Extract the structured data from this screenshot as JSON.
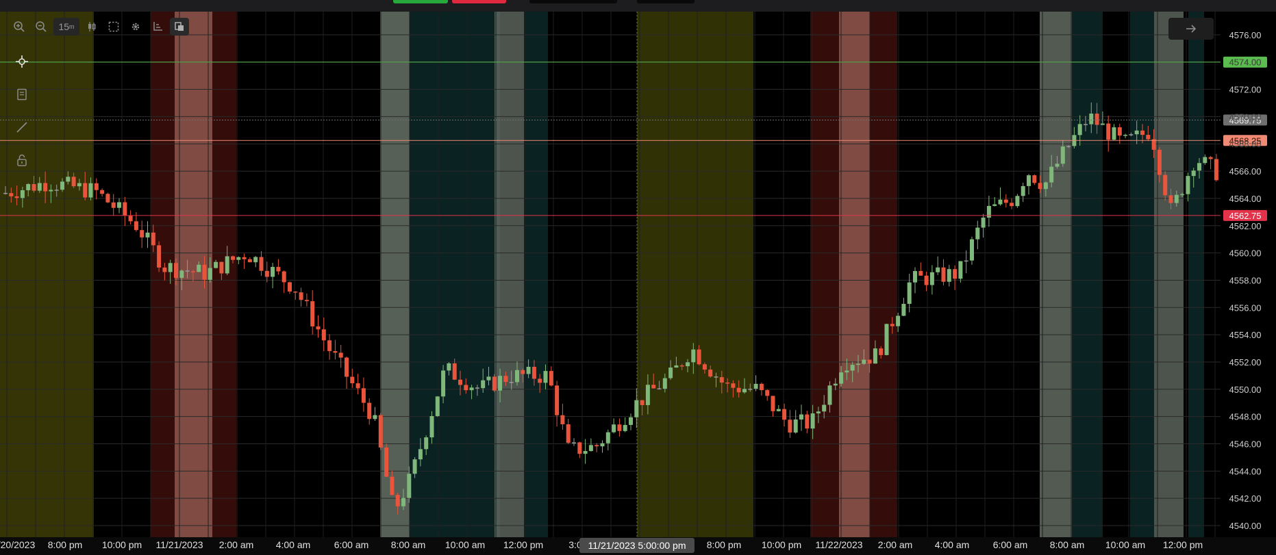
{
  "toolbar": {
    "interval_value": "15",
    "interval_unit": "m",
    "icons": [
      "zoom-in-icon",
      "zoom-out-icon",
      "candles-icon",
      "selection-icon",
      "gear-icon",
      "axis-icon",
      "layers-icon"
    ]
  },
  "side_tools": [
    "crosshair-icon",
    "notes-icon",
    "line-icon",
    "unlock-icon"
  ],
  "chart": {
    "y_ticks": [
      "4576.00",
      "4574.00",
      "4572.00",
      "4570.00",
      "4568.00",
      "4566.00",
      "4564.00",
      "4562.00",
      "4560.00",
      "4558.00",
      "4556.00",
      "4554.00",
      "4552.00",
      "4550.00",
      "4548.00",
      "4546.00",
      "4544.00",
      "4542.00",
      "4540.00"
    ],
    "y_tick_values": [
      4576,
      4574,
      4572,
      4570,
      4568,
      4566,
      4564,
      4562,
      4560,
      4558,
      4556,
      4554,
      4552,
      4550,
      4548,
      4546,
      4544,
      4542,
      4540
    ],
    "x_labels": [
      "/20/2023",
      "8:00 pm",
      "10:00 pm",
      "11/21/2023",
      "2:00 am",
      "4:00 am",
      "6:00 am",
      "8:00 am",
      "10:00 am",
      "12:00 pm",
      "3:0",
      "8:00 pm",
      "10:00 pm",
      "11/22/2023",
      "2:00 am",
      "4:00 am",
      "6:00 am",
      "8:00 am",
      "10:00 am",
      "12:00 pm"
    ],
    "crosshair_time_label": "11/21/2023 5:00:00 pm",
    "price_lines": [
      {
        "label": "4574.00",
        "value": 4574.0,
        "color": "#5bbd4f",
        "text_color": "#0b1a08"
      },
      {
        "label": "4569.75",
        "value": 4569.75,
        "color": "#6f6f6f",
        "text_color": "#e8e8e8"
      },
      {
        "label": "4568.25",
        "value": 4568.25,
        "color": "#f08a74",
        "text_color": "#3a1208"
      },
      {
        "label": "4562.75",
        "value": 4562.75,
        "color": "#e2334a",
        "text_color": "#ffffff"
      }
    ],
    "colors": {
      "up": "#7fb87a",
      "down": "#e8553c",
      "neutral": "#9a9a9a",
      "session_olive": "#3a3a07",
      "session_red": "#3a0e0b",
      "session_pink": "#a0665b",
      "session_gray": "#6d786d",
      "session_teal": "#0e2a2c"
    }
  }
}
